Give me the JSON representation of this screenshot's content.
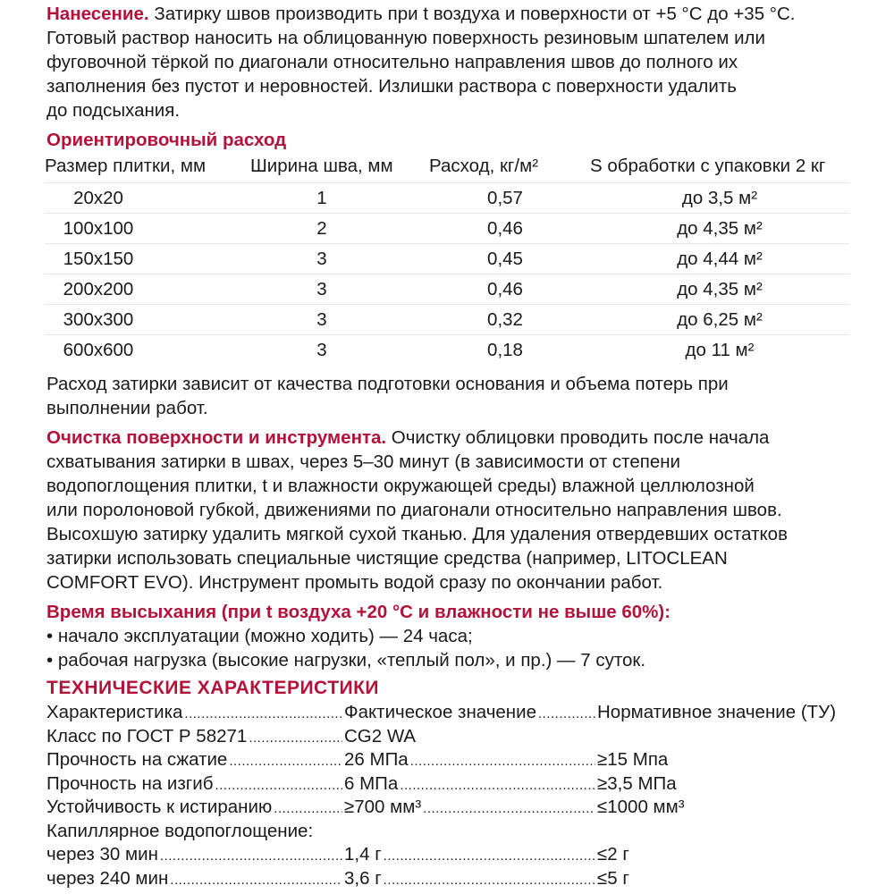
{
  "application": {
    "heading": "Нанесение.",
    "lines": [
      "Затирку швов производить при t воздуха и поверхности от +5 °С до +35 °С.",
      "Готовый раствор наносить на облицованную поверхность резиновым шпателем или",
      "фуговочной тёркой по диагонали относительно направления швов до полного их",
      "заполнения без пустот и неровностей. Излишки раствора с поверхности удалить",
      "до подсыхания."
    ]
  },
  "consumption": {
    "heading": "Ориентировочный расход",
    "columns": [
      "Размер плитки, мм",
      "Ширина шва, мм",
      "Расход, кг/м²",
      "S обработки с упаковки 2 кг"
    ],
    "rows": [
      [
        "20x20",
        "1",
        "0,57",
        "до 3,5 м²"
      ],
      [
        "100x100",
        "2",
        "0,46",
        "до 4,35 м²"
      ],
      [
        "150x150",
        "3",
        "0,45",
        "до 4,44 м²"
      ],
      [
        "200x200",
        "3",
        "0,46",
        "до 4,35 м²"
      ],
      [
        "300x300",
        "3",
        "0,32",
        "до 6,25 м²"
      ],
      [
        "600x600",
        "3",
        "0,18",
        "до 11 м²"
      ]
    ],
    "note_lines": [
      "Расход затирки зависит от качества подготовки основания и объема потерь при",
      "выполнении работ."
    ]
  },
  "cleaning": {
    "heading": "Очистка поверхности и инструмента.",
    "first_line_rest": " Очистку облицовки проводить после начала",
    "lines": [
      "схватывания затирки в швах, через 5–30 минут (в зависимости от степени",
      "водопоглощения плитки, t и влажности окружающей среды) влажной целлюлозной",
      "или поролоновой губкой, движениями по диагонали относительно направления швов.",
      "Высохшую затирку удалить мягкой сухой тканью. Для удаления отвердевших остатков",
      "затирки использовать специальные чистящие средства (например, LITOCLEAN",
      "COMFORT EVO). Инструмент промыть водой сразу по окончании работ."
    ]
  },
  "drying": {
    "heading": "Время высыхания (при t воздуха +20 °С и влажности не выше 60%):",
    "items": [
      "начало эксплуатации (можно ходить) — 24 часа;",
      "рабочая нагрузка (высокие нагрузки, «теплый пол», и пр.) — 7 суток."
    ]
  },
  "tech": {
    "heading": "ТЕХНИЧЕСКИЕ ХАРАКТЕРИСТИКИ",
    "rows": [
      {
        "label": "Характеристика",
        "value": "Фактическое значение",
        "norm": "Нормативное значение (ТУ)"
      },
      {
        "label": "Класс по ГОСТ Р 58271",
        "value": "CG2 WA",
        "norm": ""
      },
      {
        "label": "Прочность на сжатие",
        "value": "26 МПа",
        "norm": "≥15 Мпа"
      },
      {
        "label": "Прочность на изгиб",
        "value": "6 МПа",
        "norm": "≥3,5 МПа"
      },
      {
        "label": "Устойчивость к истиранию",
        "value": "≥700 мм³",
        "norm": "≤1000 мм³"
      },
      {
        "label": "Капиллярное водопоглощение:",
        "value": "",
        "norm": ""
      },
      {
        "label": "через 30 мин",
        "value": "1,4 г",
        "norm": "≤2 г"
      },
      {
        "label": "через 240 мин",
        "value": "3,6 г",
        "norm": "≤5 г"
      }
    ]
  }
}
